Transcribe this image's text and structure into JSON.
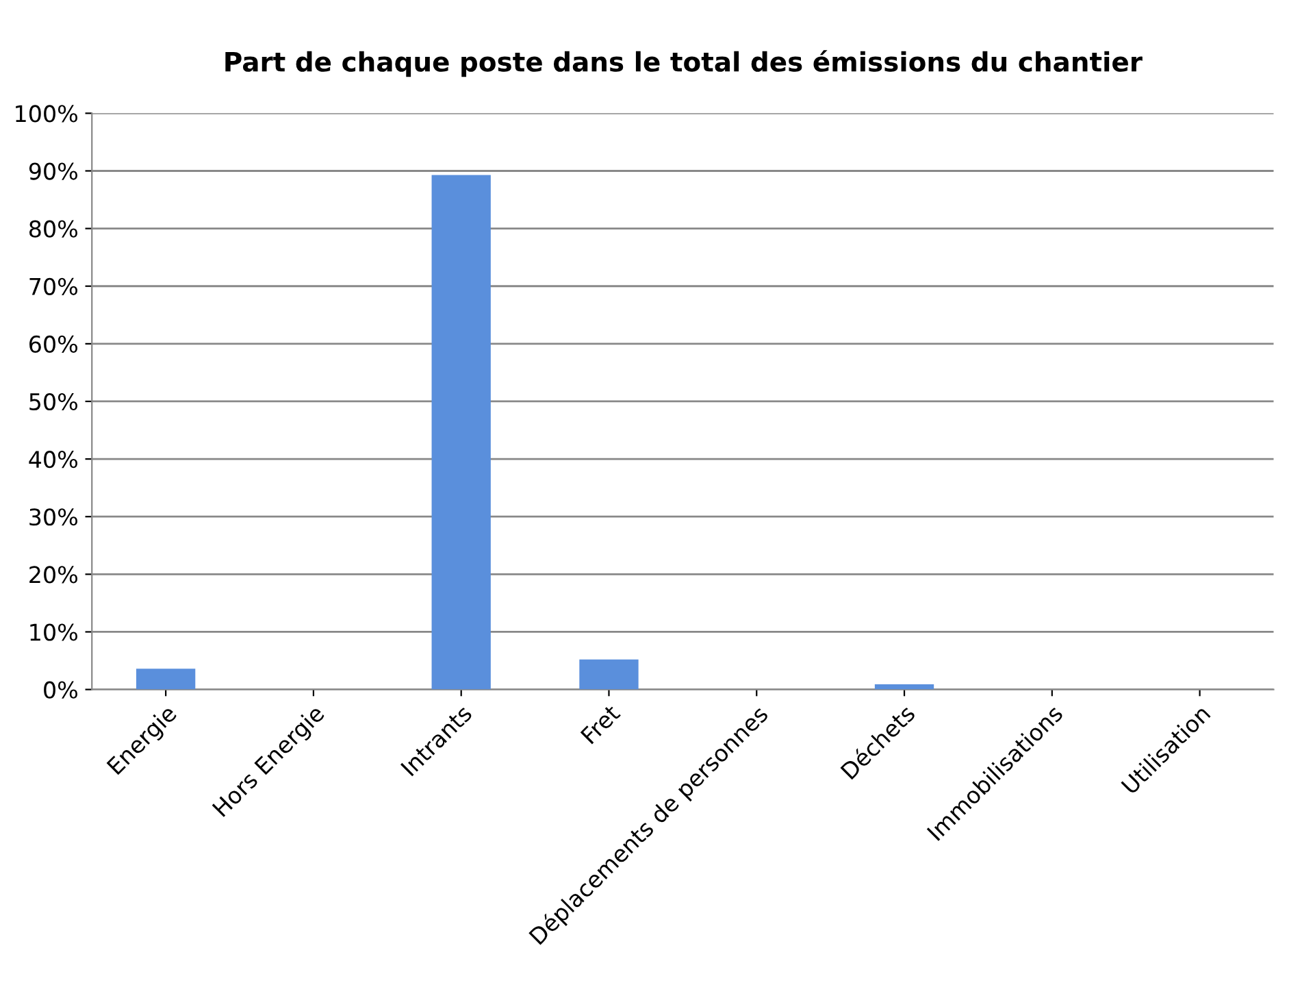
{
  "chart_data": {
    "type": "bar",
    "title": "Part de chaque poste dans le total des émissions du chantier",
    "categories": [
      "Energie",
      "Hors Energie",
      "Intrants",
      "Fret",
      "Déplacements de personnes",
      "Déchets",
      "Immobilisations",
      "Utilisation"
    ],
    "values": [
      3.6,
      0,
      89.3,
      5.2,
      0,
      0.9,
      0,
      0
    ],
    "color": "#5a8fdc",
    "ylim": [
      0,
      100
    ],
    "yticks": [
      {
        "value": 0,
        "label": "0%"
      },
      {
        "value": 10,
        "label": "10%"
      },
      {
        "value": 20,
        "label": "20%"
      },
      {
        "value": 30,
        "label": "30%"
      },
      {
        "value": 40,
        "label": "40%"
      },
      {
        "value": 50,
        "label": "50%"
      },
      {
        "value": 60,
        "label": "60%"
      },
      {
        "value": 70,
        "label": "70%"
      },
      {
        "value": 80,
        "label": "80%"
      },
      {
        "value": 90,
        "label": "90%"
      },
      {
        "value": 100,
        "label": "100%"
      }
    ],
    "grid": "y"
  }
}
